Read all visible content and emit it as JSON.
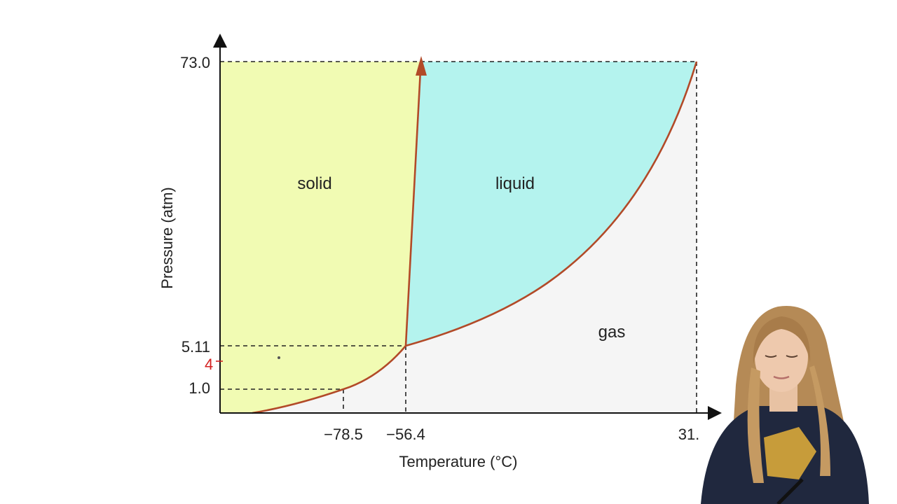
{
  "diagram": {
    "regions": {
      "solid": "solid",
      "liquid": "liquid",
      "gas": "gas"
    },
    "y_axis": {
      "title": "Pressure (atm)",
      "ticks": [
        "73.0",
        "5.11",
        "1.0"
      ]
    },
    "x_axis": {
      "title": "Temperature (°C)",
      "ticks": [
        "−78.5",
        "−56.4",
        "31."
      ]
    },
    "annotation": {
      "handwritten_mark": "4"
    },
    "colors": {
      "solid_fill": "#f1fbb3",
      "liquid_fill": "#b4f3ee",
      "gas_fill": "#f5f5f5",
      "curve": "#b24a28",
      "annotation_ink": "#d42020"
    }
  }
}
